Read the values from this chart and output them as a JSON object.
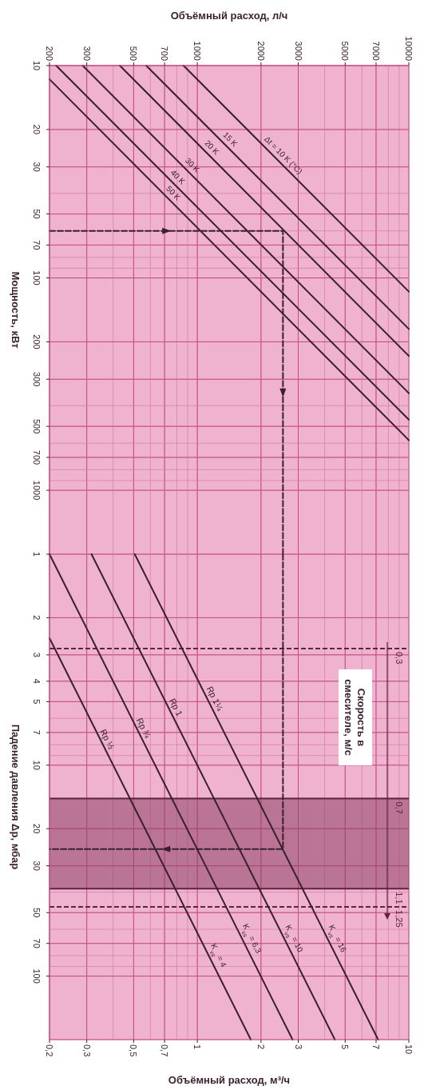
{
  "chart_data": [
    {
      "type": "line",
      "log": "xy",
      "xlabel": "Объёмный расход, л/ч",
      "ylabel": "Мощность, кВт",
      "xlim": [
        200,
        10000
      ],
      "ylim": [
        2000,
        10
      ],
      "xticks": [
        200,
        300,
        500,
        700,
        1000,
        2000,
        3000,
        5000,
        7000,
        10000
      ],
      "yticks": [
        10,
        20,
        30,
        50,
        70,
        100,
        200,
        300,
        500,
        700,
        1000
      ],
      "grid": true,
      "series": [
        {
          "name": "Δt = 10 K (°C)",
          "color": "#3a1f2e",
          "x": [
            860,
            10000
          ],
          "values": [
            10,
            116
          ]
        },
        {
          "name": "15 K",
          "color": "#3a1f2e",
          "x": [
            573,
            10000
          ],
          "values": [
            10,
            174
          ]
        },
        {
          "name": "20 K",
          "color": "#3a1f2e",
          "x": [
            430,
            10000
          ],
          "values": [
            10,
            233
          ]
        },
        {
          "name": "30 K",
          "color": "#3a1f2e",
          "x": [
            287,
            10000
          ],
          "values": [
            10,
            349
          ]
        },
        {
          "name": "40 K",
          "color": "#3a1f2e",
          "x": [
            215,
            10000
          ],
          "values": [
            10,
            465
          ]
        },
        {
          "name": "50 K",
          "color": "#3a1f2e",
          "x": [
            200,
            10000
          ],
          "values": [
            11.6,
            581
          ]
        },
        {
          "color": "#3a1f2e",
          "line_style": "dashed",
          "x": [
            200,
            2540,
            2540
          ],
          "values": [
            60,
            60,
            2000
          ]
        }
      ]
    },
    {
      "type": "line",
      "log": "xy",
      "xlabel": "Объёмный расход, м³/ч",
      "ylabel": "Падение давления Δp, мбар",
      "xlim": [
        0.2,
        10
      ],
      "ylim": [
        200,
        1
      ],
      "xticks": [
        {
          "value": 0.2,
          "label": "0,2"
        },
        {
          "value": 0.3,
          "label": "0,3"
        },
        {
          "value": 0.5,
          "label": "0,5"
        },
        {
          "value": 0.7,
          "label": "0,7"
        },
        1,
        2,
        3,
        5,
        7,
        10
      ],
      "yticks": [
        1,
        2,
        3,
        4,
        5,
        7,
        10,
        20,
        30,
        50,
        70,
        100
      ],
      "grid": true,
      "series": [
        {
          "name": "K$_{vs}$ = 16",
          "color": "#3a1f2e",
          "x": [
            0.506,
            7.16
          ],
          "values": [
            1,
            200
          ]
        },
        {
          "name": "K$_{vs}$ = 10",
          "color": "#3a1f2e",
          "x": [
            0.316,
            4.47
          ],
          "values": [
            1,
            200
          ]
        },
        {
          "name": "K$_{vs}$ = 6,3",
          "color": "#3a1f2e",
          "x": [
            0.2,
            2.82
          ],
          "values": [
            1,
            200
          ]
        },
        {
          "name": "K$_{vs}$ = 4",
          "color": "#3a1f2e",
          "x": [
            0.2,
            1.79
          ],
          "values": [
            2.5,
            200
          ]
        },
        {
          "color": "#3a1f2e",
          "line_style": "dashed",
          "x": [
            2.54,
            2.54,
            0.2
          ],
          "values": [
            1,
            25,
            25
          ]
        }
      ],
      "ref_lines": [
        {
          "axis": "y",
          "value": 2.8,
          "line_style": "dashed"
        },
        {
          "axis": "y",
          "value": 14.4,
          "line_style": "solid"
        },
        {
          "axis": "y",
          "value": 38.5,
          "line_style": "solid"
        },
        {
          "axis": "y",
          "value": 47,
          "line_style": "dashed"
        }
      ],
      "bands": [
        {
          "axis": "y",
          "from": 14.4,
          "to": 38.5,
          "color": "#8e3f66"
        }
      ],
      "annotations": [
        "Скорость в смесителе, м/с",
        {
          "text": "0,3",
          "x": 9,
          "y": 2.8
        },
        {
          "text": "0,7",
          "x": 9,
          "y": 14.4
        },
        {
          "text": "1,1",
          "x": 9,
          "y": 38.5
        },
        {
          "text": "1,25",
          "x": 9,
          "y": 47
        },
        {
          "text": "Rp 1¼",
          "x": 1.13,
          "y": 5
        },
        {
          "text": "Rp 1",
          "x": 0.74,
          "y": 5.5
        },
        {
          "text": "Rp ¾",
          "x": 0.52,
          "y": 6.9
        },
        {
          "text": "Rp ½",
          "x": 0.35,
          "y": 7.8
        }
      ]
    }
  ]
}
